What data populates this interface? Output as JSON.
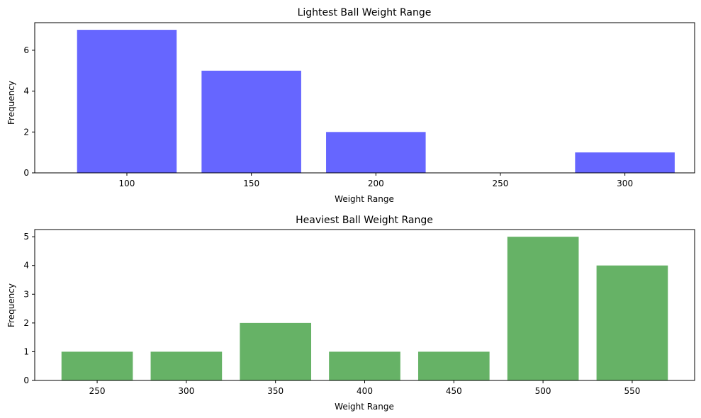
{
  "chart_data": [
    {
      "type": "bar",
      "title": "Lightest Ball Weight Range",
      "xlabel": "Weight Range",
      "ylabel": "Frequency",
      "x": [
        100,
        150,
        200,
        300
      ],
      "values": [
        7,
        5,
        2,
        1
      ],
      "bar_width": 40,
      "xlim": [
        63,
        328
      ],
      "xticks": [
        100,
        150,
        200,
        250,
        300
      ],
      "ylim": [
        0,
        7.35
      ],
      "yticks": [
        0,
        2,
        4,
        6
      ],
      "color": "#6666ff",
      "grid": false
    },
    {
      "type": "bar",
      "title": "Heaviest Ball Weight Range",
      "xlabel": "Weight Range",
      "ylabel": "Frequency",
      "x": [
        250,
        300,
        350,
        400,
        450,
        500,
        550
      ],
      "values": [
        1,
        1,
        2,
        1,
        1,
        5,
        4
      ],
      "bar_width": 40,
      "xlim": [
        215,
        585
      ],
      "xticks": [
        250,
        300,
        350,
        400,
        450,
        500,
        550
      ],
      "ylim": [
        0,
        5.25
      ],
      "yticks": [
        0,
        1,
        2,
        3,
        4,
        5
      ],
      "color": "#66b266",
      "grid": false
    }
  ]
}
